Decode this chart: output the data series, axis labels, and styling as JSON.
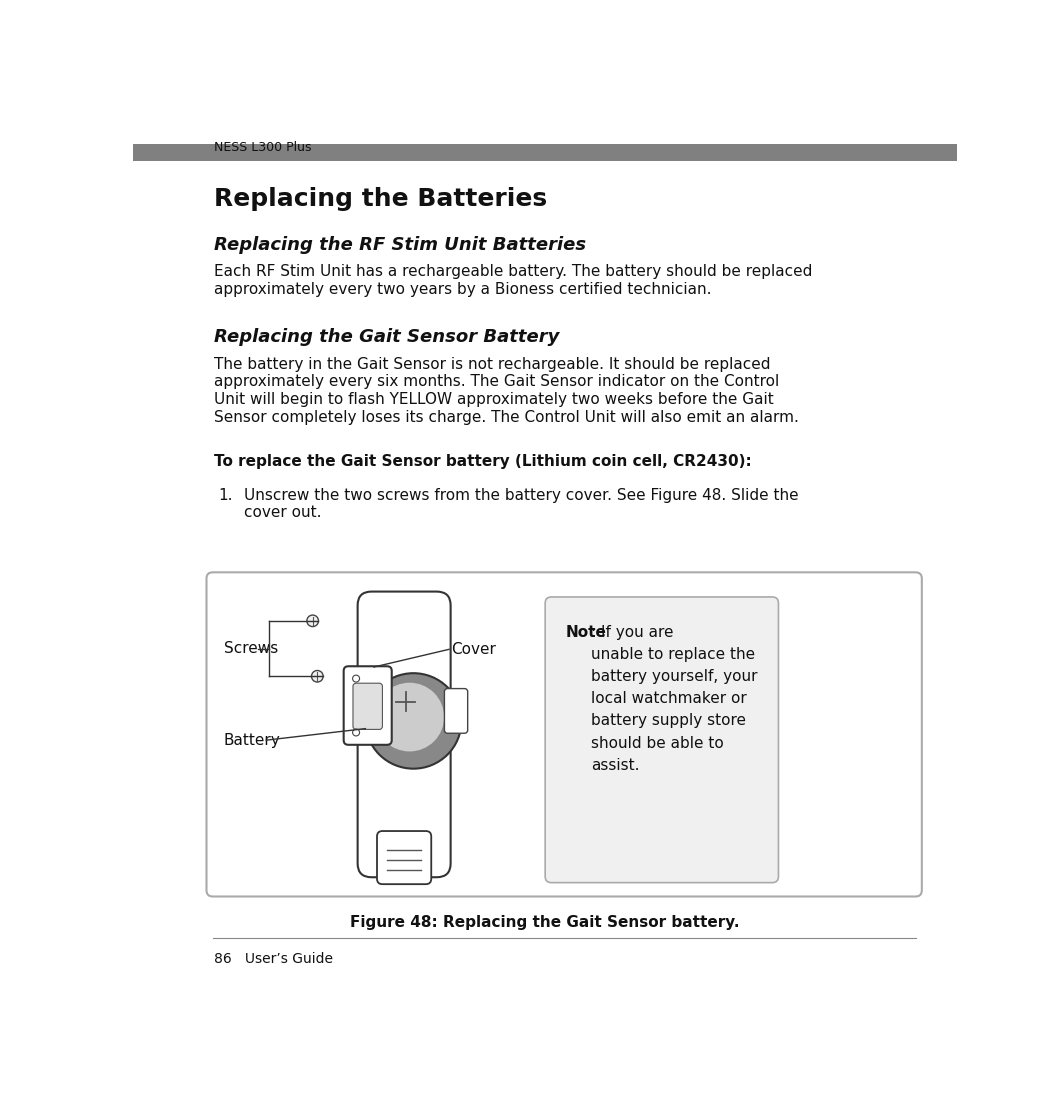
{
  "page_width": 10.63,
  "page_height": 10.99,
  "dpi": 100,
  "bg_color": "#ffffff",
  "header_text": "NESS L300 Plus",
  "header_bar_color": "#808080",
  "title_main": "Replacing the Batteries",
  "title_main_fontsize": 18,
  "subtitle1": "Replacing the RF Stim Unit Batteries",
  "subtitle1_fontsize": 13,
  "body1_line1": "Each RF Stim Unit has a rechargeable battery. The battery should be replaced",
  "body1_line2": "approximately every two years by a Bioness certified technician.",
  "body_fontsize": 11,
  "subtitle2": "Replacing the Gait Sensor Battery",
  "subtitle2_fontsize": 13,
  "body2_line1": "The battery in the Gait Sensor is not rechargeable. It should be replaced",
  "body2_line2": "approximately every six months. The Gait Sensor indicator on the Control",
  "body2_line3": "Unit will begin to flash YELLOW approximately two weeks before the Gait",
  "body2_line4": "Sensor completely loses its charge. The Control Unit will also emit an alarm.",
  "instruction": "To replace the Gait Sensor battery (Lithium coin cell, CR2430):",
  "instruction_fontsize": 11,
  "step1_a": "Unscrew the two screws from the battery cover. See Figure 48. Slide the",
  "step1_b": "cover out.",
  "figure_caption": "Figure 48: Replacing the Gait Sensor battery.",
  "figure_caption_fontsize": 11,
  "footer_text": "86   User’s Guide",
  "footer_fontsize": 10,
  "note_bold": "Note",
  "note_rest": ": If you are\nunable to replace the\nbattery yourself, your\nlocal watchmaker or\nbattery supply store\nshould be able to\nassist.",
  "note_fontsize": 11,
  "screws_label": "Screws",
  "battery_label": "Battery",
  "cover_label": "Cover"
}
